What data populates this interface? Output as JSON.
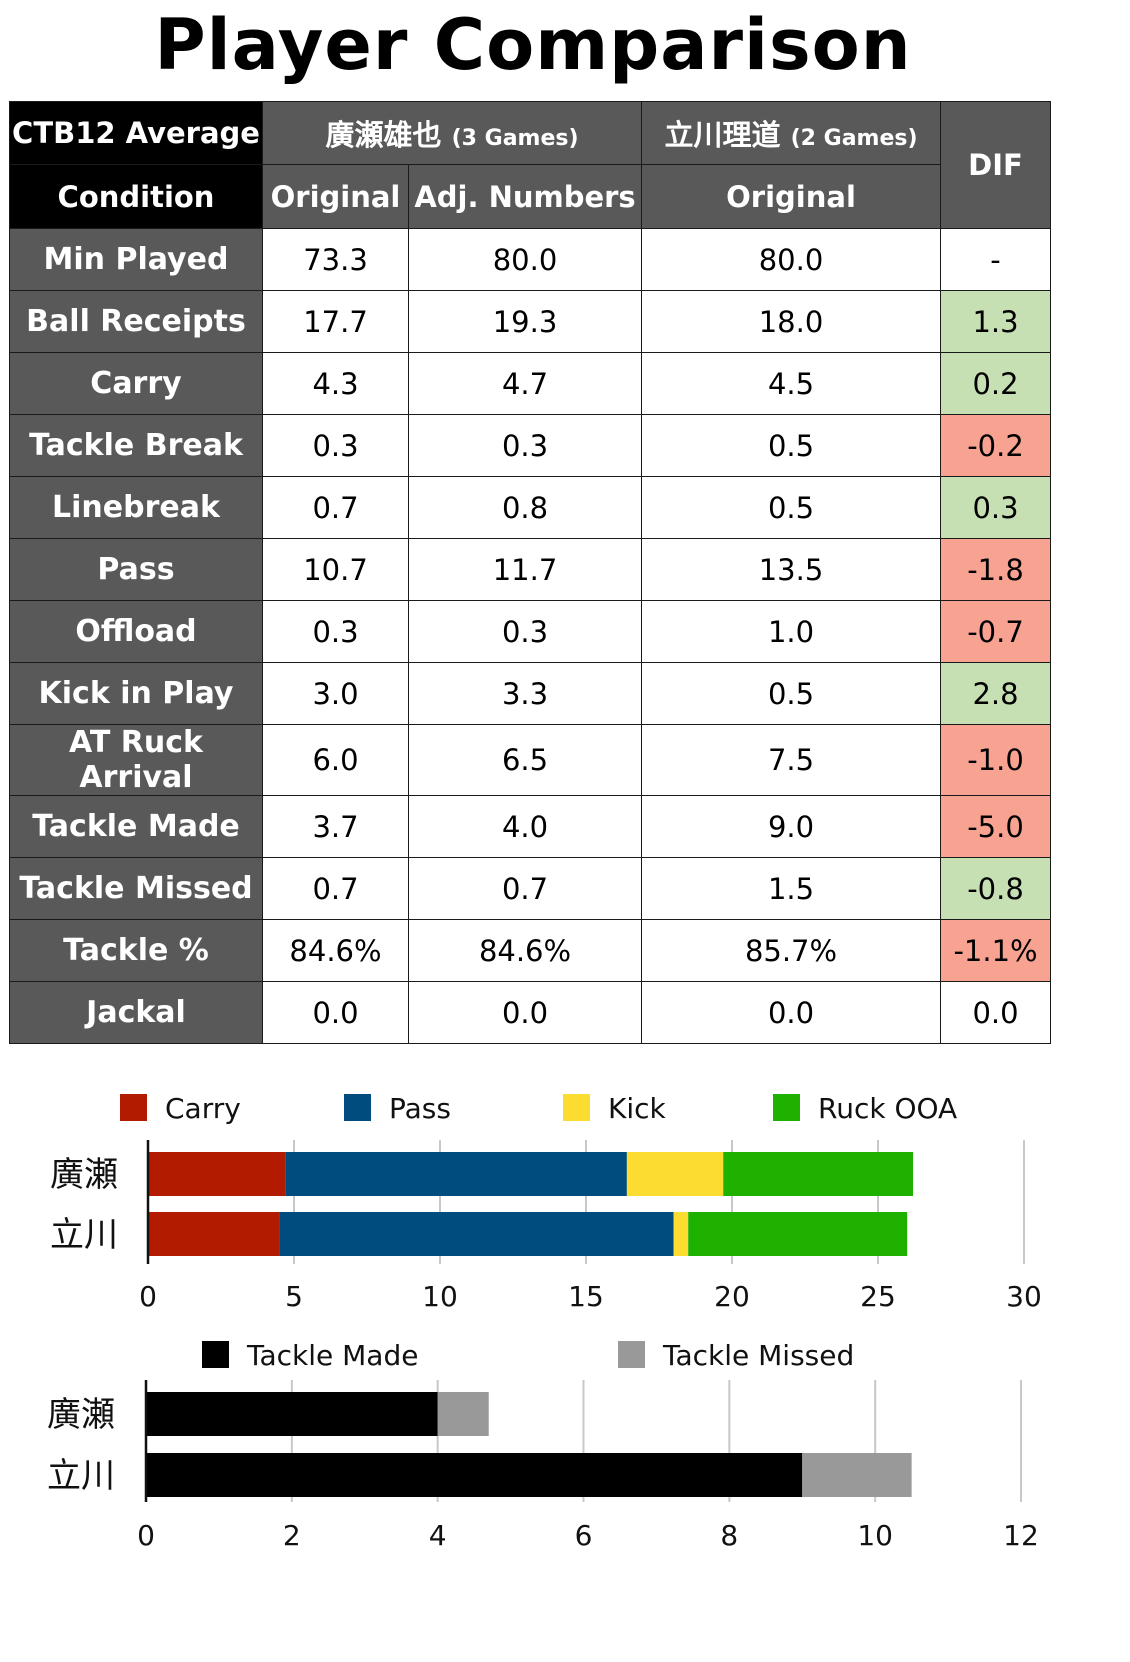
{
  "title": "Player Comparison",
  "table": {
    "corner_top": "CTB12 Average",
    "corner_bottom": "Condition",
    "player1_name": "廣瀬雄也",
    "player1_games": "(3 Games)",
    "player2_name": "立川理道",
    "player2_games": "(2 Games)",
    "dif_label": "DIF",
    "col_original": "Original",
    "col_adjusted": "Adj. Numbers",
    "col_original2": "Original",
    "colors": {
      "positive": "#c6e0b4",
      "negative": "#f8a392",
      "neutral": "#ffffff"
    },
    "rows": [
      {
        "label": "Min Played",
        "p1_original": "73.3",
        "p1_adjusted": "80.0",
        "p2_original": "80.0",
        "dif": "-",
        "dif_status": "neutral"
      },
      {
        "label": "Ball Receipts",
        "p1_original": "17.7",
        "p1_adjusted": "19.3",
        "p2_original": "18.0",
        "dif": "1.3",
        "dif_status": "positive"
      },
      {
        "label": "Carry",
        "p1_original": "4.3",
        "p1_adjusted": "4.7",
        "p2_original": "4.5",
        "dif": "0.2",
        "dif_status": "positive"
      },
      {
        "label": "Tackle Break",
        "p1_original": "0.3",
        "p1_adjusted": "0.3",
        "p2_original": "0.5",
        "dif": "-0.2",
        "dif_status": "negative"
      },
      {
        "label": "Linebreak",
        "p1_original": "0.7",
        "p1_adjusted": "0.8",
        "p2_original": "0.5",
        "dif": "0.3",
        "dif_status": "positive"
      },
      {
        "label": "Pass",
        "p1_original": "10.7",
        "p1_adjusted": "11.7",
        "p2_original": "13.5",
        "dif": "-1.8",
        "dif_status": "negative"
      },
      {
        "label": "Offload",
        "p1_original": "0.3",
        "p1_adjusted": "0.3",
        "p2_original": "1.0",
        "dif": "-0.7",
        "dif_status": "negative"
      },
      {
        "label": "Kick in Play",
        "p1_original": "3.0",
        "p1_adjusted": "3.3",
        "p2_original": "0.5",
        "dif": "2.8",
        "dif_status": "positive"
      },
      {
        "label": "AT Ruck Arrival",
        "p1_original": "6.0",
        "p1_adjusted": "6.5",
        "p2_original": "7.5",
        "dif": "-1.0",
        "dif_status": "negative"
      },
      {
        "label": "Tackle Made",
        "p1_original": "3.7",
        "p1_adjusted": "4.0",
        "p2_original": "9.0",
        "dif": "-5.0",
        "dif_status": "negative"
      },
      {
        "label": "Tackle Missed",
        "p1_original": "0.7",
        "p1_adjusted": "0.7",
        "p2_original": "1.5",
        "dif": "-0.8",
        "dif_status": "positive"
      },
      {
        "label": "Tackle %",
        "p1_original": "84.6%",
        "p1_adjusted": "84.6%",
        "p2_original": "85.7%",
        "dif": "-1.1%",
        "dif_status": "negative"
      },
      {
        "label": "Jackal",
        "p1_original": "0.0",
        "p1_adjusted": "0.0",
        "p2_original": "0.0",
        "dif": "0.0",
        "dif_status": "neutral"
      }
    ]
  },
  "chart_data": [
    {
      "type": "bar",
      "orientation": "horizontal",
      "stacked": true,
      "title": "",
      "xlabel": "",
      "ylabel": "",
      "categories": [
        "廣瀬",
        "立川"
      ],
      "series": [
        {
          "name": "Carry",
          "color": "#b31b00",
          "values": [
            4.7,
            4.5
          ]
        },
        {
          "name": "Pass",
          "color": "#004c7f",
          "values": [
            11.7,
            13.5
          ]
        },
        {
          "name": "Kick",
          "color": "#fddc31",
          "values": [
            3.3,
            0.5
          ]
        },
        {
          "name": "Ruck OOA",
          "color": "#1eb100",
          "values": [
            6.5,
            7.5
          ]
        }
      ],
      "xlim": [
        0,
        30
      ],
      "xticks": [
        0,
        5,
        10,
        15,
        20,
        25,
        30
      ],
      "grid": true,
      "legend": "top"
    },
    {
      "type": "bar",
      "orientation": "horizontal",
      "stacked": true,
      "title": "",
      "xlabel": "",
      "ylabel": "",
      "categories": [
        "廣瀬",
        "立川"
      ],
      "series": [
        {
          "name": "Tackle Made",
          "color": "#000000",
          "values": [
            4.0,
            9.0
          ]
        },
        {
          "name": "Tackle Missed",
          "color": "#999999",
          "values": [
            0.7,
            1.5
          ]
        }
      ],
      "xlim": [
        0,
        12
      ],
      "xticks": [
        0,
        2,
        4,
        6,
        8,
        10,
        12
      ],
      "grid": true,
      "legend": "top"
    }
  ]
}
